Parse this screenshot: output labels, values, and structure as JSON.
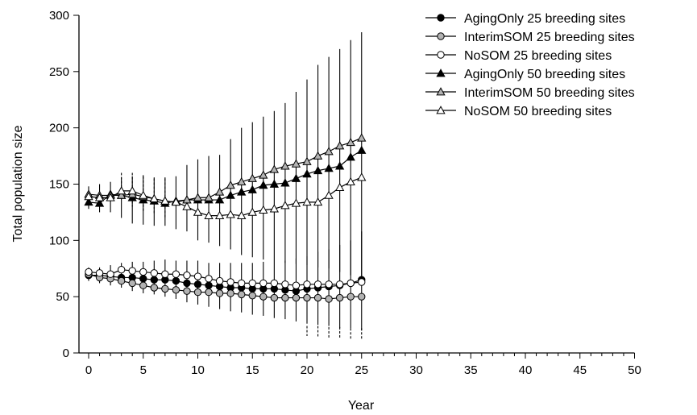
{
  "chart_data": {
    "type": "line",
    "xlabel": "Year",
    "ylabel": "Total population size",
    "xlim": [
      0,
      50
    ],
    "ylim": [
      0,
      300
    ],
    "xticks": [
      0,
      5,
      10,
      15,
      20,
      25,
      30,
      35,
      40,
      45,
      50
    ],
    "yticks": [
      0,
      50,
      100,
      150,
      200,
      250,
      300
    ],
    "grid": false,
    "legend_position": "top-right",
    "x": [
      0,
      1,
      2,
      3,
      4,
      5,
      6,
      7,
      8,
      9,
      10,
      11,
      12,
      13,
      14,
      15,
      16,
      17,
      18,
      19,
      20,
      21,
      22,
      23,
      24,
      25
    ],
    "series": [
      {
        "name": "AgingOnly 25 breeding sites",
        "marker": "circle",
        "fill": "#000000",
        "values": [
          69,
          69,
          68,
          67,
          67,
          66,
          65,
          65,
          64,
          62,
          61,
          60,
          59,
          58,
          58,
          57,
          57,
          57,
          56,
          55,
          57,
          58,
          59,
          60,
          62,
          65
        ]
      },
      {
        "name": "InterimSOM 25 breeding sites",
        "marker": "circle",
        "fill": "#b3b3b3",
        "values": [
          70,
          67,
          66,
          64,
          62,
          60,
          58,
          57,
          56,
          55,
          54,
          54,
          53,
          53,
          52,
          51,
          50,
          49,
          49,
          49,
          49,
          49,
          48,
          49,
          50,
          50
        ]
      },
      {
        "name": "NoSOM 25 breeding sites",
        "marker": "circle",
        "fill": "#ffffff",
        "values": [
          72,
          71,
          70,
          74,
          73,
          72,
          71,
          70,
          70,
          69,
          68,
          66,
          64,
          63,
          62,
          62,
          62,
          62,
          61,
          60,
          61,
          61,
          61,
          61,
          62,
          63
        ]
      },
      {
        "name": "AgingOnly 50 breeding sites",
        "marker": "triangle",
        "fill": "#000000",
        "values": [
          134,
          133,
          141,
          140,
          138,
          136,
          135,
          133,
          135,
          136,
          136,
          136,
          136,
          140,
          143,
          145,
          149,
          150,
          151,
          155,
          159,
          162,
          164,
          166,
          174,
          180
        ]
      },
      {
        "name": "InterimSOM 50 breeding sites",
        "marker": "triangle",
        "fill": "#b3b3b3",
        "values": [
          141,
          140,
          140,
          140,
          141,
          139,
          137,
          135,
          134,
          136,
          138,
          138,
          143,
          149,
          152,
          155,
          158,
          163,
          166,
          168,
          170,
          175,
          179,
          184,
          187,
          191
        ]
      },
      {
        "name": "NoSOM 50 breeding sites",
        "marker": "triangle",
        "fill": "#ffffff",
        "values": [
          139,
          138,
          138,
          144,
          144,
          140,
          137,
          135,
          134,
          130,
          125,
          122,
          122,
          123,
          122,
          125,
          127,
          128,
          131,
          133,
          134,
          134,
          140,
          147,
          152,
          156
        ]
      }
    ],
    "error_bars": [
      {
        "series": "AgingOnly 50 breeding sites",
        "style": "solid",
        "upper": [
          148,
          150,
          152,
          156,
          157,
          158,
          156,
          156,
          157,
          167,
          172,
          175,
          176,
          190,
          200,
          205,
          210,
          215,
          222,
          232,
          243,
          256,
          263,
          270,
          278,
          285
        ],
        "lower": [
          128,
          125,
          125,
          120,
          115,
          114,
          113,
          113,
          110,
          108,
          100,
          98,
          95,
          92,
          87,
          85,
          83,
          82,
          80,
          79,
          78,
          76,
          75,
          72,
          69,
          68
        ]
      },
      {
        "series": "NoSOM 50 breeding sites",
        "style": "dashed",
        "upper": [
          null,
          null,
          null,
          160,
          160,
          157,
          155,
          155,
          null,
          null,
          null,
          null,
          null,
          null,
          null,
          null,
          null,
          null,
          null,
          null,
          null,
          null,
          null,
          null,
          null,
          null
        ],
        "lower": [
          null,
          null,
          null,
          135,
          130,
          125,
          123,
          120,
          null,
          null,
          null,
          null,
          null,
          null,
          null,
          null,
          null,
          null,
          null,
          null,
          null,
          null,
          null,
          null,
          null,
          null
        ]
      },
      {
        "series": "AgingOnly 25 breeding sites",
        "style": "solid",
        "upper": [
          76,
          76,
          78,
          80,
          81,
          81,
          82,
          83,
          82,
          82,
          82,
          80,
          80,
          80,
          80,
          80,
          81,
          82,
          82,
          84,
          86,
          90,
          92,
          96,
          100,
          108
        ],
        "lower": [
          64,
          62,
          60,
          58,
          55,
          53,
          52,
          50,
          48,
          45,
          43,
          41,
          39,
          37,
          36,
          34,
          33,
          31,
          30,
          28,
          26,
          25,
          24,
          22,
          22,
          20
        ]
      },
      {
        "series": "InterimSOM 25 breeding sites",
        "style": "dashed",
        "upper": [
          null,
          null,
          null,
          null,
          null,
          null,
          null,
          null,
          null,
          null,
          null,
          null,
          null,
          null,
          null,
          null,
          null,
          null,
          null,
          null,
          24,
          24,
          23,
          23,
          22,
          22
        ],
        "lower": [
          null,
          null,
          null,
          null,
          null,
          null,
          null,
          null,
          null,
          null,
          null,
          null,
          null,
          null,
          null,
          null,
          null,
          null,
          null,
          null,
          15,
          14,
          13,
          13,
          12,
          12
        ]
      }
    ]
  }
}
